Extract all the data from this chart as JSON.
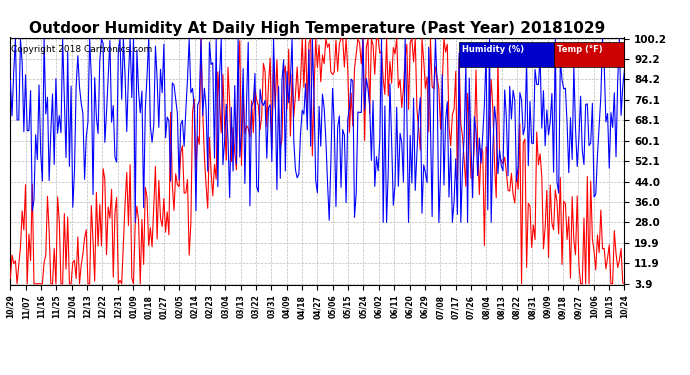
{
  "title": "Outdoor Humidity At Daily High Temperature (Past Year) 20181029",
  "copyright": "Copyright 2018 Cartronics.com",
  "legend_humidity_label": "Humidity (%)",
  "legend_temp_label": "Temp (°F)",
  "legend_bg_blue": "#0000cc",
  "legend_bg_red": "#cc0000",
  "yticks": [
    3.9,
    11.9,
    19.9,
    28.0,
    36.0,
    44.0,
    52.1,
    60.1,
    68.1,
    76.1,
    84.2,
    92.2,
    100.2
  ],
  "ymin": 3.9,
  "ymax": 100.2,
  "background_color": "#ffffff",
  "plot_bg_color": "#ffffff",
  "grid_color": "#bbbbbb",
  "title_fontsize": 11,
  "copyright_fontsize": 6.5,
  "xtick_fontsize": 5.5,
  "ytick_fontsize": 7.5,
  "line_width": 0.8,
  "blue_color": "#0000ff",
  "red_color": "#ff0000",
  "n_points": 365,
  "xtick_labels": [
    "10/29",
    "11/07",
    "11/16",
    "11/25",
    "12/04",
    "12/13",
    "12/22",
    "12/31",
    "01/09",
    "01/18",
    "01/27",
    "02/05",
    "02/14",
    "02/23",
    "03/04",
    "03/13",
    "03/22",
    "03/31",
    "04/09",
    "04/18",
    "04/27",
    "05/06",
    "05/15",
    "05/24",
    "06/02",
    "06/11",
    "06/20",
    "06/29",
    "07/08",
    "07/17",
    "07/26",
    "08/04",
    "08/13",
    "08/22",
    "08/31",
    "09/09",
    "09/18",
    "09/27",
    "10/06",
    "10/15",
    "10/24"
  ]
}
